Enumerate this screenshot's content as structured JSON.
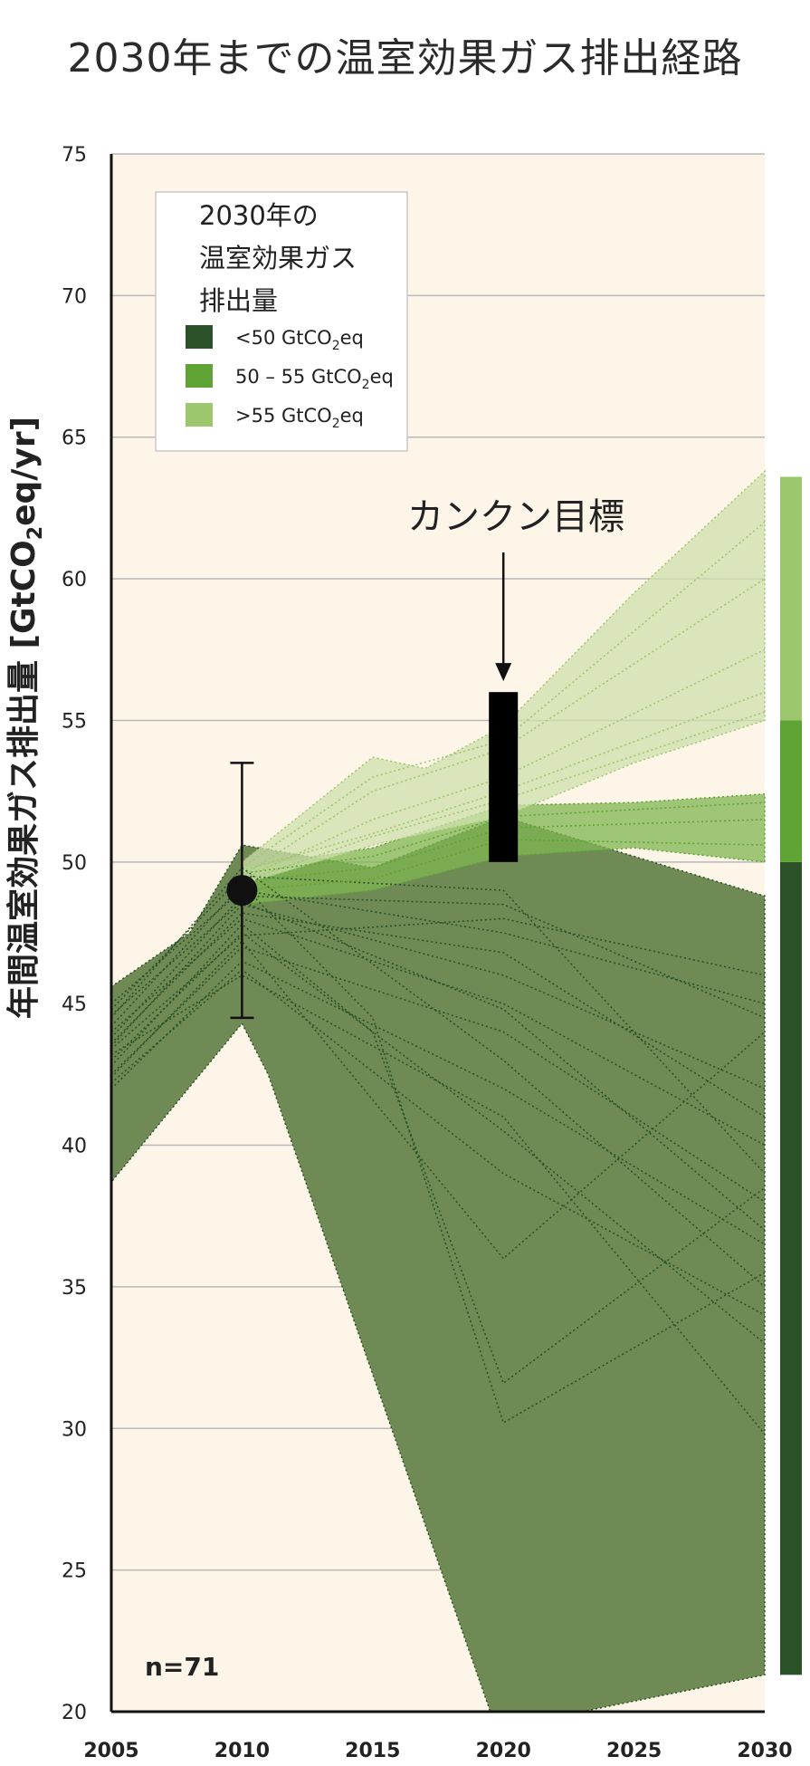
{
  "chart_data": {
    "type": "line",
    "title": "2030年までの温室効果ガス排出経路",
    "ylabel": "年間温室効果ガス排出量 [GtCO2eq/yr]",
    "ylabel_main": "年間温室効果ガス排出量 ",
    "ylabel_unit_a": "[GtCO",
    "ylabel_unit_sub": "2",
    "ylabel_unit_b": "eq/yr]",
    "xlabel": "",
    "xlim": [
      2005,
      2030
    ],
    "ylim": [
      20,
      75
    ],
    "x_ticks": [
      2005,
      2010,
      2015,
      2020,
      2025,
      2030
    ],
    "y_ticks": [
      20,
      25,
      30,
      35,
      40,
      45,
      50,
      55,
      60,
      65,
      70,
      75
    ],
    "grid": true,
    "legend": {
      "placement": "top-left",
      "title_lines": [
        "2030年の",
        "温室効果ガス",
        "排出量"
      ],
      "entries": [
        {
          "pre": "<50 GtCO",
          "sub": "2",
          "post": "eq",
          "color": "#2a5128"
        },
        {
          "pre": "50 – 55 GtCO",
          "sub": "2",
          "post": "eq",
          "color": "#5ea334"
        },
        {
          "pre": ">55 GtCO",
          "sub": "2",
          "post": "eq",
          "color": "#9dc76c"
        }
      ]
    },
    "bands": [
      {
        "name": "<50 GtCO2eq",
        "color": "#2a5128",
        "fill": "#6f8a55",
        "upper": [
          [
            2005,
            45.6
          ],
          [
            2008,
            47.5
          ],
          [
            2010,
            50.6
          ],
          [
            2015,
            49.8
          ],
          [
            2020,
            51.6
          ],
          [
            2030,
            48.8
          ]
        ],
        "lower": [
          [
            2005,
            38.7
          ],
          [
            2010,
            44.3
          ],
          [
            2011,
            42.5
          ],
          [
            2019.5,
            20
          ],
          [
            2023,
            20
          ],
          [
            2030,
            21.3
          ]
        ]
      },
      {
        "name": "50 – 55 GtCO2eq",
        "color": "#5ea334",
        "fill": "#7fb552",
        "upper": [
          [
            2010,
            49.8
          ],
          [
            2015,
            50.5
          ],
          [
            2020,
            52.0
          ],
          [
            2025,
            52.1
          ],
          [
            2030,
            52.4
          ]
        ],
        "lower": [
          [
            2010,
            48.5
          ],
          [
            2015,
            49.0
          ],
          [
            2020,
            50.2
          ],
          [
            2025,
            50.5
          ],
          [
            2030,
            50.0
          ]
        ]
      },
      {
        "name": ">55 GtCO2eq",
        "color": "#9dc76c",
        "fill": "#cddfac",
        "upper": [
          [
            2010,
            50.0
          ],
          [
            2015,
            53.7
          ],
          [
            2017,
            53.3
          ],
          [
            2020,
            54.8
          ],
          [
            2025,
            59.5
          ],
          [
            2030,
            63.8
          ]
        ],
        "lower": [
          [
            2010,
            49.2
          ],
          [
            2015,
            50.6
          ],
          [
            2020,
            51.6
          ],
          [
            2025,
            53.5
          ],
          [
            2030,
            55.0
          ]
        ]
      }
    ],
    "series": [
      {
        "group": 0,
        "points": [
          [
            2005,
            44.5
          ],
          [
            2010,
            49.8
          ],
          [
            2020,
            43.0
          ],
          [
            2030,
            35.0
          ]
        ]
      },
      {
        "group": 0,
        "points": [
          [
            2005,
            43.5
          ],
          [
            2010,
            48.5
          ],
          [
            2020,
            46.0
          ],
          [
            2030,
            42.0
          ]
        ]
      },
      {
        "group": 0,
        "points": [
          [
            2005,
            42.5
          ],
          [
            2010,
            47.0
          ],
          [
            2020,
            44.0
          ],
          [
            2030,
            38.0
          ]
        ]
      },
      {
        "group": 0,
        "points": [
          [
            2005,
            45.0
          ],
          [
            2010,
            49.0
          ],
          [
            2020,
            47.5
          ],
          [
            2030,
            45.0
          ]
        ]
      },
      {
        "group": 0,
        "points": [
          [
            2005,
            43.0
          ],
          [
            2010,
            47.5
          ],
          [
            2020,
            40.5
          ],
          [
            2030,
            33.0
          ]
        ]
      },
      {
        "group": 0,
        "points": [
          [
            2005,
            44.0
          ],
          [
            2010,
            48.0
          ],
          [
            2020,
            45.0
          ],
          [
            2030,
            40.0
          ]
        ]
      },
      {
        "group": 0,
        "points": [
          [
            2005,
            42.0
          ],
          [
            2010,
            46.5
          ],
          [
            2020,
            42.0
          ],
          [
            2030,
            36.5
          ]
        ]
      },
      {
        "group": 0,
        "points": [
          [
            2005,
            43.8
          ],
          [
            2010,
            48.8
          ],
          [
            2020,
            48.5
          ],
          [
            2030,
            44.5
          ]
        ]
      },
      {
        "group": 0,
        "points": [
          [
            2005,
            42.8
          ],
          [
            2010,
            47.8
          ],
          [
            2015,
            44.0
          ],
          [
            2020,
            31.6
          ],
          [
            2030,
            38.5
          ]
        ]
      },
      {
        "group": 0,
        "points": [
          [
            2005,
            44.2
          ],
          [
            2010,
            49.2
          ],
          [
            2015,
            44.5
          ],
          [
            2020,
            30.2
          ],
          [
            2030,
            35.5
          ]
        ]
      },
      {
        "group": 0,
        "points": [
          [
            2005,
            43.2
          ],
          [
            2010,
            46.0
          ],
          [
            2020,
            41.0
          ],
          [
            2030,
            29.8
          ]
        ]
      },
      {
        "group": 0,
        "points": [
          [
            2005,
            44.8
          ],
          [
            2010,
            49.5
          ],
          [
            2020,
            49.0
          ],
          [
            2030,
            39.0
          ]
        ]
      },
      {
        "group": 0,
        "points": [
          [
            2005,
            42.4
          ],
          [
            2010,
            47.2
          ],
          [
            2020,
            36.0
          ],
          [
            2030,
            44.0
          ]
        ]
      },
      {
        "group": 0,
        "points": [
          [
            2005,
            43.6
          ],
          [
            2010,
            48.2
          ],
          [
            2020,
            46.8
          ],
          [
            2030,
            41.0
          ]
        ]
      },
      {
        "group": 0,
        "points": [
          [
            2005,
            44.6
          ],
          [
            2010,
            48.6
          ],
          [
            2020,
            44.8
          ],
          [
            2030,
            37.0
          ]
        ]
      },
      {
        "group": 0,
        "points": [
          [
            2005,
            42.2
          ],
          [
            2010,
            46.2
          ],
          [
            2020,
            39.0
          ],
          [
            2030,
            34.0
          ]
        ]
      },
      {
        "group": 0,
        "points": [
          [
            2005,
            43.4
          ],
          [
            2010,
            47.4
          ],
          [
            2020,
            48.0
          ],
          [
            2030,
            46.0
          ]
        ]
      },
      {
        "group": 1,
        "points": [
          [
            2010,
            49.3
          ],
          [
            2015,
            49.8
          ],
          [
            2020,
            51.2
          ],
          [
            2030,
            51.5
          ]
        ]
      },
      {
        "group": 1,
        "points": [
          [
            2010,
            49.0
          ],
          [
            2015,
            49.4
          ],
          [
            2020,
            50.8
          ],
          [
            2030,
            50.6
          ]
        ]
      },
      {
        "group": 1,
        "points": [
          [
            2010,
            49.6
          ],
          [
            2015,
            50.2
          ],
          [
            2020,
            51.6
          ],
          [
            2030,
            52.1
          ]
        ]
      },
      {
        "group": 2,
        "points": [
          [
            2010,
            49.5
          ],
          [
            2015,
            52.5
          ],
          [
            2020,
            54.0
          ],
          [
            2030,
            60.0
          ]
        ]
      },
      {
        "group": 2,
        "points": [
          [
            2010,
            49.4
          ],
          [
            2015,
            51.5
          ],
          [
            2020,
            53.0
          ],
          [
            2030,
            57.5
          ]
        ]
      },
      {
        "group": 2,
        "points": [
          [
            2010,
            49.7
          ],
          [
            2015,
            51.0
          ],
          [
            2020,
            52.5
          ],
          [
            2030,
            56.0
          ]
        ]
      },
      {
        "group": 2,
        "points": [
          [
            2010,
            49.3
          ],
          [
            2015,
            50.9
          ],
          [
            2020,
            52.2
          ],
          [
            2030,
            55.3
          ]
        ]
      },
      {
        "group": 2,
        "points": [
          [
            2010,
            49.8
          ],
          [
            2015,
            53.0
          ],
          [
            2020,
            54.3
          ],
          [
            2030,
            62.0
          ]
        ]
      }
    ],
    "data_point": {
      "x": 2010,
      "y": 49.0,
      "err_low": 44.5,
      "err_high": 53.5
    },
    "target": {
      "label": "カンクン目標",
      "x": 2020,
      "y_low": 50.0,
      "y_high": 56.0
    },
    "side_bar": [
      {
        "from": 21.3,
        "to": 50.0,
        "color": "#2a5128"
      },
      {
        "from": 50.0,
        "to": 55.0,
        "color": "#5ea334"
      },
      {
        "from": 55.0,
        "to": 63.6,
        "color": "#9dc76c"
      }
    ],
    "annotation": "n=71"
  }
}
